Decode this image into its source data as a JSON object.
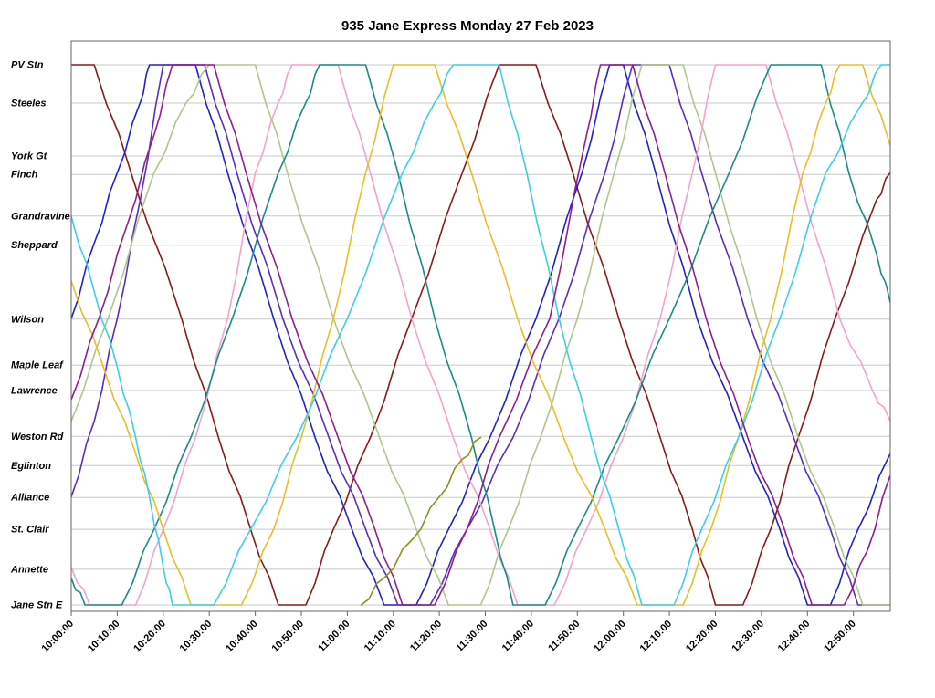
{
  "title": "935 Jane Express Monday 27 Feb 2023",
  "chart_data": {
    "type": "line",
    "title": "935 Jane Express Monday 27 Feb 2023",
    "xlabel": "",
    "ylabel": "",
    "legend": "none",
    "grid": "horizontal",
    "x_axis": {
      "start_minutes": 0,
      "end_minutes": 178,
      "tick_interval_minutes": 10,
      "tick_labels": [
        "10:00:00",
        "10:10:00",
        "10:20:00",
        "10:30:00",
        "10:40:00",
        "10:50:00",
        "11:00:00",
        "11:10:00",
        "11:20:00",
        "11:30:00",
        "11:40:00",
        "11:50:00",
        "12:00:00",
        "12:10:00",
        "12:20:00",
        "12:30:00",
        "12:40:00",
        "12:50:00"
      ]
    },
    "y_axis": {
      "stations": [
        {
          "name": "PV Stn",
          "pos": 0.0
        },
        {
          "name": "Steeles",
          "pos": 0.071
        },
        {
          "name": "York Gt",
          "pos": 0.169
        },
        {
          "name": "Finch",
          "pos": 0.203
        },
        {
          "name": "Grandravine",
          "pos": 0.28
        },
        {
          "name": "Sheppard",
          "pos": 0.334
        },
        {
          "name": "Wilson",
          "pos": 0.471
        },
        {
          "name": "Maple Leaf",
          "pos": 0.556
        },
        {
          "name": "Lawrence",
          "pos": 0.603
        },
        {
          "name": "Weston Rd",
          "pos": 0.688
        },
        {
          "name": "Eglinton",
          "pos": 0.742
        },
        {
          "name": "Alliance",
          "pos": 0.801
        },
        {
          "name": "St. Clair",
          "pos": 0.86
        },
        {
          "name": "Annette",
          "pos": 0.934
        },
        {
          "name": "Jane Stn E",
          "pos": 1.0
        }
      ]
    },
    "series": [
      {
        "name": "run-dark-red",
        "color": "#8B1A1A",
        "points": [
          [
            0,
            0
          ],
          [
            5,
            0
          ],
          [
            13,
            0.2
          ],
          [
            24,
            0.47
          ],
          [
            32,
            0.69
          ],
          [
            39,
            0.86
          ],
          [
            45,
            1
          ],
          [
            51,
            1
          ],
          [
            57,
            0.86
          ],
          [
            65,
            0.69
          ],
          [
            74,
            0.47
          ],
          [
            85,
            0.2
          ],
          [
            93,
            0
          ],
          [
            101,
            0
          ],
          [
            109,
            0.2
          ],
          [
            119,
            0.47
          ],
          [
            128,
            0.69
          ],
          [
            135,
            0.86
          ],
          [
            140,
            1
          ],
          [
            146,
            1
          ],
          [
            152,
            0.86
          ],
          [
            158,
            0.69
          ],
          [
            166,
            0.47
          ],
          [
            175,
            0.25
          ],
          [
            178,
            0.2
          ]
        ]
      },
      {
        "name": "run-blue",
        "color": "#2222CC",
        "points": [
          [
            0,
            0.47
          ],
          [
            5,
            0.33
          ],
          [
            10,
            0.2
          ],
          [
            15,
            0.07
          ],
          [
            17,
            0
          ],
          [
            27,
            0
          ],
          [
            34,
            0.2
          ],
          [
            44,
            0.47
          ],
          [
            53,
            0.69
          ],
          [
            61,
            0.86
          ],
          [
            68,
            1
          ],
          [
            75,
            1
          ],
          [
            82,
            0.86
          ],
          [
            91,
            0.69
          ],
          [
            101,
            0.47
          ],
          [
            111,
            0.2
          ],
          [
            117,
            0
          ],
          [
            120,
            0
          ],
          [
            127,
            0.2
          ],
          [
            136,
            0.47
          ],
          [
            146,
            0.69
          ],
          [
            154,
            0.86
          ],
          [
            160,
            1
          ],
          [
            165,
            1
          ],
          [
            171,
            0.86
          ],
          [
            178,
            0.72
          ]
        ]
      },
      {
        "name": "run-violet",
        "color": "#5A2FC0",
        "points": [
          [
            0,
            0.8
          ],
          [
            5,
            0.66
          ],
          [
            10,
            0.47
          ],
          [
            15,
            0.25
          ],
          [
            20,
            0
          ],
          [
            29,
            0
          ],
          [
            36,
            0.2
          ],
          [
            46,
            0.47
          ],
          [
            56,
            0.69
          ],
          [
            64,
            0.86
          ],
          [
            71,
            1
          ],
          [
            78,
            1
          ],
          [
            86,
            0.86
          ],
          [
            96,
            0.69
          ],
          [
            106,
            0.47
          ],
          [
            116,
            0.2
          ],
          [
            122,
            0
          ],
          [
            130,
            0
          ],
          [
            137,
            0.2
          ],
          [
            147,
            0.47
          ],
          [
            157,
            0.69
          ],
          [
            165,
            0.86
          ],
          [
            171,
            1
          ],
          [
            178,
            1
          ]
        ]
      },
      {
        "name": "run-light-green",
        "color": "#ADC88A",
        "points": [
          [
            0,
            0.66
          ],
          [
            8,
            0.47
          ],
          [
            18,
            0.2
          ],
          [
            25,
            0.07
          ],
          [
            30,
            0
          ],
          [
            40,
            0
          ],
          [
            47,
            0.2
          ],
          [
            57,
            0.47
          ],
          [
            67,
            0.69
          ],
          [
            75,
            0.86
          ],
          [
            82,
            1
          ],
          [
            89,
            1
          ],
          [
            95,
            0.86
          ],
          [
            102,
            0.69
          ],
          [
            110,
            0.47
          ],
          [
            118,
            0.2
          ],
          [
            124,
            0
          ],
          [
            133,
            0
          ],
          [
            140,
            0.2
          ],
          [
            149,
            0.47
          ],
          [
            158,
            0.69
          ],
          [
            166,
            0.86
          ],
          [
            172,
            1
          ],
          [
            178,
            1
          ]
        ]
      },
      {
        "name": "run-pink",
        "color": "#F3A3CE",
        "points": [
          [
            0,
            0.93
          ],
          [
            4,
            1
          ],
          [
            14,
            1
          ],
          [
            20,
            0.86
          ],
          [
            27,
            0.69
          ],
          [
            34,
            0.47
          ],
          [
            40,
            0.2
          ],
          [
            45,
            0.07
          ],
          [
            48,
            0
          ],
          [
            58,
            0
          ],
          [
            65,
            0.2
          ],
          [
            74,
            0.47
          ],
          [
            83,
            0.69
          ],
          [
            91,
            0.86
          ],
          [
            97,
            1
          ],
          [
            105,
            1
          ],
          [
            112,
            0.86
          ],
          [
            120,
            0.69
          ],
          [
            128,
            0.47
          ],
          [
            135,
            0.2
          ],
          [
            140,
            0
          ],
          [
            151,
            0
          ],
          [
            158,
            0.2
          ],
          [
            167,
            0.47
          ],
          [
            174,
            0.6
          ],
          [
            178,
            0.66
          ]
        ]
      },
      {
        "name": "run-teal",
        "color": "#1A8C86",
        "points": [
          [
            0,
            0.95
          ],
          [
            3,
            1
          ],
          [
            11,
            1
          ],
          [
            18,
            0.86
          ],
          [
            26,
            0.69
          ],
          [
            35,
            0.47
          ],
          [
            45,
            0.2
          ],
          [
            51,
            0.07
          ],
          [
            54,
            0
          ],
          [
            64,
            0
          ],
          [
            71,
            0.2
          ],
          [
            79,
            0.47
          ],
          [
            87,
            0.69
          ],
          [
            92,
            0.86
          ],
          [
            96,
            1
          ],
          [
            103,
            1
          ],
          [
            110,
            0.86
          ],
          [
            119,
            0.69
          ],
          [
            130,
            0.47
          ],
          [
            143,
            0.2
          ],
          [
            152,
            0
          ],
          [
            163,
            0
          ],
          [
            169,
            0.2
          ],
          [
            175,
            0.35
          ],
          [
            178,
            0.44
          ]
        ]
      },
      {
        "name": "run-gold",
        "color": "#E9BE28",
        "points": [
          [
            0,
            0.4
          ],
          [
            7,
            0.56
          ],
          [
            14,
            0.72
          ],
          [
            20,
            0.86
          ],
          [
            26,
            1
          ],
          [
            37,
            1
          ],
          [
            44,
            0.86
          ],
          [
            50,
            0.69
          ],
          [
            57,
            0.47
          ],
          [
            64,
            0.2
          ],
          [
            70,
            0
          ],
          [
            79,
            0
          ],
          [
            87,
            0.2
          ],
          [
            97,
            0.47
          ],
          [
            107,
            0.69
          ],
          [
            116,
            0.86
          ],
          [
            123,
            1
          ],
          [
            133,
            1
          ],
          [
            139,
            0.86
          ],
          [
            145,
            0.69
          ],
          [
            152,
            0.47
          ],
          [
            159,
            0.2
          ],
          [
            164,
            0.07
          ],
          [
            167,
            0
          ],
          [
            172,
            0
          ],
          [
            178,
            0.15
          ]
        ]
      },
      {
        "name": "run-cyan",
        "color": "#3CCFE8",
        "points": [
          [
            0,
            0.28
          ],
          [
            5,
            0.42
          ],
          [
            10,
            0.56
          ],
          [
            14,
            0.69
          ],
          [
            17,
            0.8
          ],
          [
            20,
            0.93
          ],
          [
            22,
            1
          ],
          [
            31,
            1
          ],
          [
            39,
            0.86
          ],
          [
            49,
            0.69
          ],
          [
            60,
            0.47
          ],
          [
            72,
            0.2
          ],
          [
            79,
            0.07
          ],
          [
            83,
            0
          ],
          [
            93,
            0
          ],
          [
            99,
            0.2
          ],
          [
            106,
            0.47
          ],
          [
            113,
            0.69
          ],
          [
            119,
            0.86
          ],
          [
            124,
            1
          ],
          [
            131,
            1
          ],
          [
            137,
            0.86
          ],
          [
            145,
            0.69
          ],
          [
            154,
            0.47
          ],
          [
            164,
            0.2
          ],
          [
            172,
            0.07
          ],
          [
            176,
            0
          ],
          [
            178,
            0
          ]
        ]
      },
      {
        "name": "run-magenta",
        "color": "#8E1F8E",
        "points": [
          [
            0,
            0.62
          ],
          [
            6,
            0.47
          ],
          [
            12,
            0.3
          ],
          [
            18,
            0.13
          ],
          [
            22,
            0
          ],
          [
            31,
            0
          ],
          [
            38,
            0.2
          ],
          [
            48,
            0.47
          ],
          [
            58,
            0.69
          ],
          [
            66,
            0.86
          ],
          [
            72,
            1
          ],
          [
            79,
            1
          ],
          [
            86,
            0.86
          ],
          [
            93,
            0.69
          ],
          [
            104,
            0.47
          ],
          [
            112,
            0.13
          ],
          [
            115,
            0
          ],
          [
            122,
            0
          ],
          [
            129,
            0.2
          ],
          [
            138,
            0.47
          ],
          [
            147,
            0.69
          ],
          [
            155,
            0.86
          ],
          [
            161,
            1
          ],
          [
            168,
            1
          ],
          [
            173,
            0.9
          ],
          [
            178,
            0.76
          ]
        ]
      },
      {
        "name": "run-olive-partial",
        "color": "#8F8F1F",
        "points": [
          [
            63,
            1
          ],
          [
            68,
            0.95
          ],
          [
            74,
            0.88
          ],
          [
            80,
            0.8
          ],
          [
            85,
            0.73
          ],
          [
            89,
            0.69
          ]
        ]
      }
    ]
  }
}
